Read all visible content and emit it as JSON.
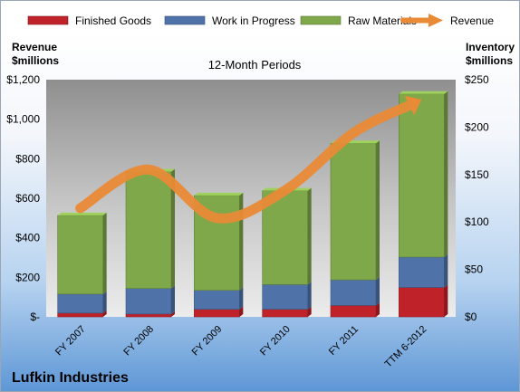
{
  "chart_data": {
    "type": "bar",
    "subtitle": "12-Month Periods",
    "company": "Lufkin Industries",
    "categories": [
      "FY 2007",
      "FY 2008",
      "FY 2009",
      "FY 2010",
      "FY 2011",
      "TTM 6-2012"
    ],
    "left_axis": {
      "label_line1": "Revenue",
      "label_line2": "$millions",
      "range": [
        0,
        1200
      ],
      "ticks": [
        {
          "value": 0,
          "label": "$-"
        },
        {
          "value": 200,
          "label": "$200"
        },
        {
          "value": 400,
          "label": "$400"
        },
        {
          "value": 600,
          "label": "$600"
        },
        {
          "value": 800,
          "label": "$800"
        },
        {
          "value": 1000,
          "label": "$1,000"
        },
        {
          "value": 1200,
          "label": "$1,200"
        }
      ]
    },
    "right_axis": {
      "label_line1": "Inventory",
      "label_line2": "$millions",
      "range": [
        0,
        250
      ],
      "ticks": [
        {
          "value": 0,
          "label": "$0"
        },
        {
          "value": 50,
          "label": "$50"
        },
        {
          "value": 100,
          "label": "$100"
        },
        {
          "value": 150,
          "label": "$150"
        },
        {
          "value": 200,
          "label": "$200"
        },
        {
          "value": 250,
          "label": "$250"
        }
      ]
    },
    "stacked_series": [
      {
        "name": "Finished Goods",
        "color": "#c0222a",
        "values": [
          4,
          3,
          8,
          8,
          12,
          31
        ]
      },
      {
        "name": "Work in Progress",
        "color": "#4f72a8",
        "values": [
          20,
          27,
          20,
          26,
          27,
          32
        ]
      },
      {
        "name": "Raw Materials",
        "color": "#7fa84a",
        "values": [
          83,
          123,
          100,
          99,
          144,
          172
        ]
      }
    ],
    "line_series": {
      "name": "Revenue",
      "color": "#e98a36",
      "axis": "left",
      "values": [
        550,
        745,
        500,
        640,
        930,
        1100
      ]
    },
    "legend_position": "top",
    "grid": false
  }
}
